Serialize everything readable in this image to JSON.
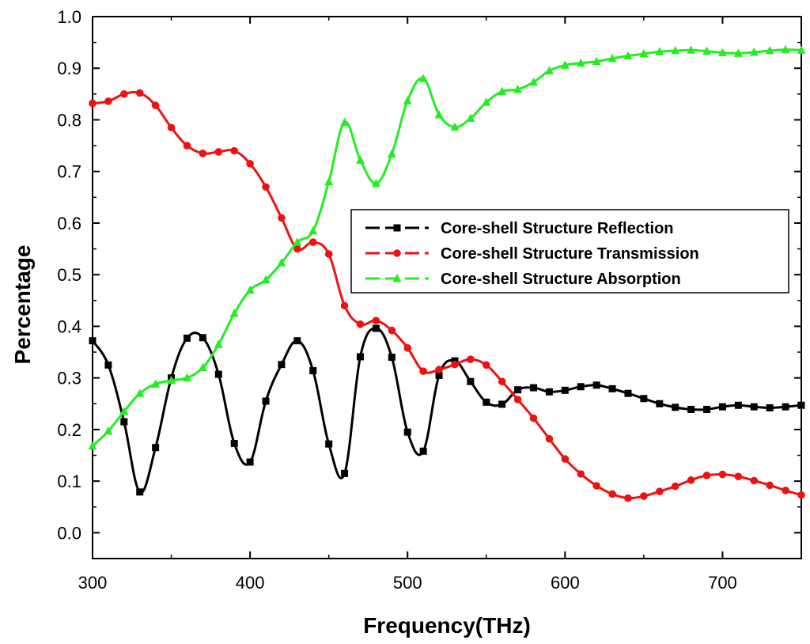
{
  "chart_data": {
    "type": "line",
    "title": "",
    "xlabel": "Frequency(THz)",
    "ylabel": "Percentage",
    "xlim": [
      300,
      750
    ],
    "ylim": [
      -0.05,
      1.0
    ],
    "x_ticks": [
      300,
      400,
      500,
      600,
      700
    ],
    "x_tick_labels": [
      "300",
      "400",
      "500",
      "600",
      "700"
    ],
    "y_ticks": [
      0.0,
      0.1,
      0.2,
      0.3,
      0.4,
      0.5,
      0.6,
      0.7,
      0.8,
      0.9,
      1.0
    ],
    "y_tick_labels": [
      "0.0",
      "0.1",
      "0.2",
      "0.3",
      "0.4",
      "0.5",
      "0.6",
      "0.7",
      "0.8",
      "0.9",
      "1.0"
    ],
    "grid": false,
    "legend_position": "center-right",
    "x": [
      300,
      310,
      320,
      330,
      340,
      350,
      360,
      370,
      380,
      390,
      400,
      410,
      420,
      430,
      440,
      450,
      460,
      470,
      480,
      490,
      500,
      510,
      520,
      530,
      540,
      550,
      560,
      570,
      580,
      590,
      600,
      610,
      620,
      630,
      640,
      650,
      660,
      670,
      680,
      690,
      700,
      710,
      720,
      730,
      740,
      750
    ],
    "series": [
      {
        "name": "Core-shell Structure Reflection",
        "color": "#000000",
        "marker": "square",
        "values": [
          0.372,
          0.325,
          0.215,
          0.079,
          0.165,
          0.3,
          0.377,
          0.378,
          0.307,
          0.173,
          0.137,
          0.255,
          0.326,
          0.372,
          0.314,
          0.172,
          0.115,
          0.341,
          0.396,
          0.34,
          0.195,
          0.158,
          0.305,
          0.333,
          0.293,
          0.253,
          0.249,
          0.277,
          0.281,
          0.273,
          0.276,
          0.283,
          0.286,
          0.279,
          0.27,
          0.26,
          0.25,
          0.243,
          0.239,
          0.239,
          0.244,
          0.247,
          0.244,
          0.242,
          0.244,
          0.247
        ]
      },
      {
        "name": "Core-shell Structure Transmission",
        "color": "#ee1111",
        "marker": "circle",
        "values": [
          0.832,
          0.836,
          0.85,
          0.852,
          0.828,
          0.785,
          0.75,
          0.735,
          0.738,
          0.74,
          0.715,
          0.67,
          0.61,
          0.55,
          0.563,
          0.54,
          0.44,
          0.404,
          0.411,
          0.392,
          0.358,
          0.313,
          0.316,
          0.326,
          0.336,
          0.325,
          0.293,
          0.258,
          0.222,
          0.182,
          0.143,
          0.114,
          0.091,
          0.075,
          0.067,
          0.071,
          0.08,
          0.09,
          0.102,
          0.111,
          0.113,
          0.109,
          0.101,
          0.092,
          0.082,
          0.073
        ]
      },
      {
        "name": "Core-shell Structure Absorption",
        "color": "#22ee22",
        "marker": "triangle",
        "values": [
          0.168,
          0.197,
          0.235,
          0.27,
          0.288,
          0.295,
          0.3,
          0.32,
          0.365,
          0.425,
          0.47,
          0.49,
          0.523,
          0.563,
          0.585,
          0.68,
          0.795,
          0.722,
          0.677,
          0.734,
          0.837,
          0.88,
          0.81,
          0.786,
          0.803,
          0.834,
          0.855,
          0.859,
          0.873,
          0.895,
          0.906,
          0.91,
          0.913,
          0.919,
          0.924,
          0.928,
          0.932,
          0.934,
          0.935,
          0.933,
          0.93,
          0.929,
          0.931,
          0.934,
          0.936,
          0.935
        ]
      }
    ]
  }
}
